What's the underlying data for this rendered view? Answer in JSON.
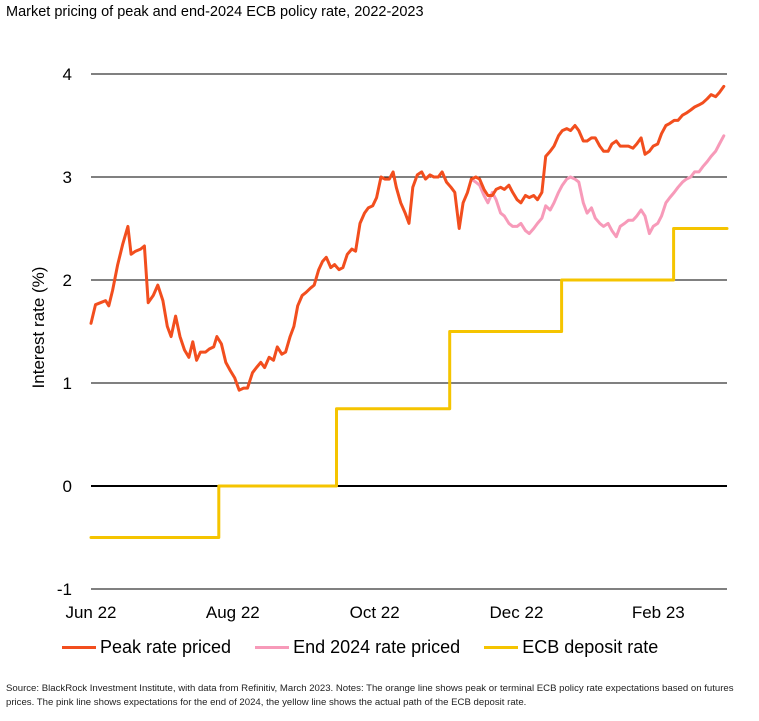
{
  "title": "Market pricing of peak and end-2024 ECB policy rate, 2022-2023",
  "source": "Source: BlackRock Investment Institute, with data from Refinitiv, March 2023. Notes: The orange line shows peak or terminal ECB policy rate expectations based on futures prices. The pink line shows expectations for the end of 2024, the yellow line shows the actual path of the ECB deposit rate.",
  "colors": {
    "peak": "#f24e1e",
    "end2024": "#f79ab9",
    "deposit": "#f5c400",
    "grid": "#000000"
  },
  "chart_data": {
    "type": "line",
    "ylabel": "Interest rate (%)",
    "ylim": [
      -1,
      4
    ],
    "yticks": [
      "4",
      "3",
      "2",
      "1",
      "0",
      "-1"
    ],
    "xlim": [
      0,
      100
    ],
    "xticks": [
      {
        "label": "Jun 22",
        "x": 0
      },
      {
        "label": "Aug 22",
        "x": 22.3
      },
      {
        "label": "Oct 22",
        "x": 44.6
      },
      {
        "label": "Dec 22",
        "x": 66.9
      },
      {
        "label": "Feb 23",
        "x": 89.2
      }
    ],
    "legend_position": "bottom",
    "series": [
      {
        "name": "Peak rate priced",
        "color": "#f24e1e",
        "points": [
          [
            0,
            1.58
          ],
          [
            0.7,
            1.76
          ],
          [
            1.5,
            1.78
          ],
          [
            2.3,
            1.8
          ],
          [
            2.8,
            1.75
          ],
          [
            3.4,
            1.9
          ],
          [
            4.2,
            2.15
          ],
          [
            5,
            2.35
          ],
          [
            5.8,
            2.52
          ],
          [
            6.3,
            2.25
          ],
          [
            7,
            2.28
          ],
          [
            7.8,
            2.3
          ],
          [
            8.4,
            2.33
          ],
          [
            9,
            1.78
          ],
          [
            9.8,
            1.85
          ],
          [
            10.5,
            1.95
          ],
          [
            11.3,
            1.8
          ],
          [
            12,
            1.55
          ],
          [
            12.6,
            1.45
          ],
          [
            13.3,
            1.65
          ],
          [
            14,
            1.45
          ],
          [
            14.7,
            1.32
          ],
          [
            15.4,
            1.25
          ],
          [
            16,
            1.4
          ],
          [
            16.6,
            1.22
          ],
          [
            17.2,
            1.3
          ],
          [
            18,
            1.3
          ],
          [
            18.6,
            1.33
          ],
          [
            19.3,
            1.35
          ],
          [
            19.8,
            1.45
          ],
          [
            20.5,
            1.38
          ],
          [
            21.2,
            1.2
          ],
          [
            21.9,
            1.12
          ],
          [
            22.6,
            1.05
          ],
          [
            23,
            0.98
          ],
          [
            23.3,
            0.93
          ],
          [
            24,
            0.95
          ],
          [
            24.6,
            0.95
          ],
          [
            25.4,
            1.1
          ],
          [
            26,
            1.15
          ],
          [
            26.7,
            1.2
          ],
          [
            27.3,
            1.15
          ],
          [
            28,
            1.25
          ],
          [
            28.7,
            1.22
          ],
          [
            29.3,
            1.35
          ],
          [
            30,
            1.28
          ],
          [
            30.6,
            1.3
          ],
          [
            31.3,
            1.45
          ],
          [
            31.9,
            1.55
          ],
          [
            32.5,
            1.75
          ],
          [
            33.2,
            1.85
          ],
          [
            33.8,
            1.88
          ],
          [
            34.5,
            1.92
          ],
          [
            35.1,
            1.95
          ],
          [
            35.8,
            2.1
          ],
          [
            36.4,
            2.18
          ],
          [
            37,
            2.22
          ],
          [
            37.7,
            2.12
          ],
          [
            38.3,
            2.15
          ],
          [
            39,
            2.1
          ],
          [
            39.6,
            2.12
          ],
          [
            40.3,
            2.25
          ],
          [
            41,
            2.3
          ],
          [
            41.6,
            2.28
          ],
          [
            42.3,
            2.55
          ],
          [
            43,
            2.65
          ],
          [
            43.6,
            2.7
          ],
          [
            44.3,
            2.72
          ],
          [
            44.9,
            2.8
          ],
          [
            45.6,
            3.0
          ],
          [
            46.2,
            2.98
          ],
          [
            46.9,
            2.98
          ],
          [
            47.5,
            3.05
          ],
          [
            48,
            2.9
          ],
          [
            48.7,
            2.75
          ],
          [
            49.4,
            2.65
          ],
          [
            50,
            2.55
          ],
          [
            50.6,
            2.9
          ],
          [
            51.3,
            3.02
          ],
          [
            52,
            3.05
          ],
          [
            52.6,
            2.98
          ],
          [
            53.3,
            3.02
          ],
          [
            53.9,
            3.0
          ],
          [
            54.6,
            3.0
          ],
          [
            55.2,
            3.05
          ],
          [
            55.9,
            2.95
          ],
          [
            56.6,
            2.9
          ],
          [
            57.2,
            2.85
          ],
          [
            57.9,
            2.5
          ],
          [
            58.5,
            2.75
          ],
          [
            59.2,
            2.85
          ],
          [
            59.8,
            2.98
          ],
          [
            60.5,
            3.0
          ],
          [
            61.1,
            2.98
          ],
          [
            61.8,
            2.88
          ],
          [
            62.4,
            2.82
          ],
          [
            63.1,
            2.82
          ],
          [
            63.7,
            2.88
          ],
          [
            64.4,
            2.9
          ],
          [
            65,
            2.88
          ],
          [
            65.7,
            2.92
          ],
          [
            66.3,
            2.85
          ],
          [
            67,
            2.78
          ],
          [
            67.6,
            2.75
          ],
          [
            68.3,
            2.82
          ],
          [
            68.9,
            2.8
          ],
          [
            69.6,
            2.82
          ],
          [
            70.2,
            2.78
          ],
          [
            70.9,
            2.85
          ],
          [
            71.5,
            3.2
          ],
          [
            72.2,
            3.25
          ],
          [
            72.8,
            3.3
          ],
          [
            73.5,
            3.4
          ],
          [
            74.1,
            3.45
          ],
          [
            74.8,
            3.47
          ],
          [
            75.4,
            3.45
          ],
          [
            76.1,
            3.5
          ],
          [
            76.7,
            3.45
          ],
          [
            77.4,
            3.35
          ],
          [
            78,
            3.35
          ],
          [
            78.7,
            3.38
          ],
          [
            79.3,
            3.38
          ],
          [
            80,
            3.3
          ],
          [
            80.6,
            3.25
          ],
          [
            81.3,
            3.25
          ],
          [
            81.9,
            3.32
          ],
          [
            82.6,
            3.35
          ],
          [
            83.2,
            3.3
          ],
          [
            83.9,
            3.3
          ],
          [
            84.5,
            3.3
          ],
          [
            85.2,
            3.28
          ],
          [
            85.8,
            3.32
          ],
          [
            86.5,
            3.38
          ],
          [
            87.1,
            3.22
          ],
          [
            87.8,
            3.25
          ],
          [
            88.4,
            3.3
          ],
          [
            89.1,
            3.32
          ],
          [
            89.7,
            3.42
          ],
          [
            90.4,
            3.5
          ],
          [
            91,
            3.52
          ],
          [
            91.7,
            3.55
          ],
          [
            92.3,
            3.55
          ],
          [
            93,
            3.6
          ],
          [
            93.6,
            3.62
          ],
          [
            94.3,
            3.65
          ],
          [
            94.9,
            3.68
          ],
          [
            95.6,
            3.7
          ],
          [
            96.2,
            3.72
          ],
          [
            96.9,
            3.76
          ],
          [
            97.5,
            3.8
          ],
          [
            98.2,
            3.78
          ],
          [
            98.8,
            3.82
          ],
          [
            99.5,
            3.88
          ]
        ]
      },
      {
        "name": "End 2024 rate priced",
        "color": "#f79ab9",
        "points": [
          [
            59.8,
            2.98
          ],
          [
            60.5,
            2.95
          ],
          [
            61.1,
            2.92
          ],
          [
            61.8,
            2.82
          ],
          [
            62.4,
            2.75
          ],
          [
            63.1,
            2.85
          ],
          [
            63.7,
            2.78
          ],
          [
            64.4,
            2.65
          ],
          [
            65,
            2.62
          ],
          [
            65.7,
            2.55
          ],
          [
            66.3,
            2.52
          ],
          [
            67,
            2.52
          ],
          [
            67.6,
            2.55
          ],
          [
            68.3,
            2.48
          ],
          [
            68.9,
            2.45
          ],
          [
            69.6,
            2.5
          ],
          [
            70.2,
            2.55
          ],
          [
            70.9,
            2.6
          ],
          [
            71.5,
            2.72
          ],
          [
            72.2,
            2.68
          ],
          [
            72.8,
            2.75
          ],
          [
            73.5,
            2.85
          ],
          [
            74.1,
            2.92
          ],
          [
            74.8,
            2.98
          ],
          [
            75.4,
            3.0
          ],
          [
            76.1,
            2.98
          ],
          [
            76.7,
            2.95
          ],
          [
            77.4,
            2.75
          ],
          [
            78,
            2.65
          ],
          [
            78.7,
            2.7
          ],
          [
            79.3,
            2.6
          ],
          [
            80,
            2.55
          ],
          [
            80.6,
            2.52
          ],
          [
            81.3,
            2.55
          ],
          [
            81.9,
            2.48
          ],
          [
            82.6,
            2.42
          ],
          [
            83.2,
            2.52
          ],
          [
            83.9,
            2.55
          ],
          [
            84.5,
            2.58
          ],
          [
            85.2,
            2.58
          ],
          [
            85.8,
            2.62
          ],
          [
            86.5,
            2.68
          ],
          [
            87.1,
            2.62
          ],
          [
            87.8,
            2.45
          ],
          [
            88.4,
            2.52
          ],
          [
            89.1,
            2.55
          ],
          [
            89.7,
            2.62
          ],
          [
            90.4,
            2.75
          ],
          [
            91,
            2.8
          ],
          [
            91.7,
            2.85
          ],
          [
            92.3,
            2.9
          ],
          [
            93,
            2.95
          ],
          [
            93.6,
            2.98
          ],
          [
            94.3,
            3.0
          ],
          [
            94.9,
            3.05
          ],
          [
            95.6,
            3.05
          ],
          [
            96.2,
            3.1
          ],
          [
            96.9,
            3.15
          ],
          [
            97.5,
            3.2
          ],
          [
            98.2,
            3.25
          ],
          [
            98.8,
            3.32
          ],
          [
            99.5,
            3.4
          ]
        ]
      },
      {
        "name": "ECB deposit rate",
        "color": "#f5c400",
        "points": [
          [
            0,
            -0.5
          ],
          [
            20.1,
            -0.5
          ],
          [
            20.1,
            0
          ],
          [
            38.6,
            0
          ],
          [
            38.6,
            0.75
          ],
          [
            56.4,
            0.75
          ],
          [
            56.4,
            1.5
          ],
          [
            74,
            1.5
          ],
          [
            74,
            2.0
          ],
          [
            91.6,
            2.0
          ],
          [
            91.6,
            2.5
          ],
          [
            100,
            2.5
          ]
        ]
      }
    ]
  }
}
